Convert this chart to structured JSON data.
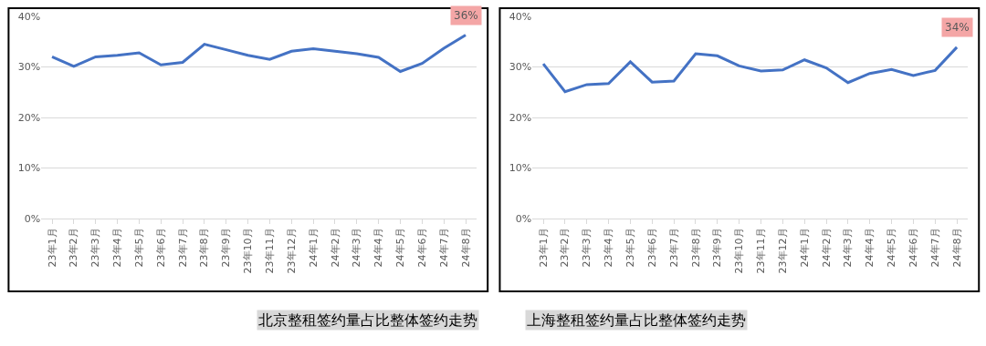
{
  "chart_data": [
    {
      "type": "line",
      "title": "北京整租签约量占比整体签约走势",
      "categories": [
        "23年1月",
        "23年2月",
        "23年3月",
        "23年4月",
        "23年5月",
        "23年6月",
        "23年7月",
        "23年8月",
        "23年9月",
        "23年10月",
        "23年11月",
        "23年12月",
        "24年1月",
        "24年2月",
        "24年3月",
        "24年4月",
        "24年5月",
        "24年6月",
        "24年7月",
        "24年8月"
      ],
      "series": [
        {
          "color": "#4472c4",
          "values": [
            32.0,
            30.1,
            32.0,
            32.3,
            32.8,
            30.4,
            30.9,
            34.5,
            33.4,
            32.3,
            31.5,
            33.1,
            33.6,
            33.1,
            32.6,
            31.9,
            29.1,
            30.7,
            33.7,
            36.3
          ],
          "value_labels": [
            null,
            null,
            null,
            null,
            null,
            null,
            null,
            null,
            null,
            null,
            null,
            null,
            null,
            null,
            null,
            null,
            null,
            null,
            null,
            "36%"
          ]
        }
      ],
      "ylim": [
        0,
        40
      ],
      "yticks": [
        {
          "value": 0,
          "label": "0%"
        },
        {
          "value": 10,
          "label": "10%"
        },
        {
          "value": 20,
          "label": "20%"
        },
        {
          "value": 30,
          "label": "30%"
        },
        {
          "value": 40,
          "label": "40%"
        }
      ],
      "grid": "y",
      "marker": "none",
      "line_style": "solid"
    },
    {
      "type": "line",
      "title": "上海整租签约量占比整体签约走势",
      "categories": [
        "23年1月",
        "23年2月",
        "23年3月",
        "23年4月",
        "23年5月",
        "23年6月",
        "23年7月",
        "23年8月",
        "23年9月",
        "23年10月",
        "23年11月",
        "23年12月",
        "24年1月",
        "24年2月",
        "24年3月",
        "24年4月",
        "24年5月",
        "24年6月",
        "24年7月",
        "24年8月"
      ],
      "series": [
        {
          "color": "#4472c4",
          "values": [
            30.6,
            25.1,
            26.5,
            26.7,
            31.0,
            27.0,
            27.2,
            32.6,
            32.2,
            30.2,
            29.2,
            29.4,
            31.4,
            29.8,
            26.9,
            28.7,
            29.5,
            28.3,
            29.3,
            33.9
          ],
          "value_labels": [
            null,
            null,
            null,
            null,
            null,
            null,
            null,
            null,
            null,
            null,
            null,
            null,
            null,
            null,
            null,
            null,
            null,
            null,
            null,
            "34%"
          ]
        }
      ],
      "ylim": [
        0,
        40
      ],
      "yticks": [
        {
          "value": 0,
          "label": "0%"
        },
        {
          "value": 10,
          "label": "10%"
        },
        {
          "value": 20,
          "label": "20%"
        },
        {
          "value": 30,
          "label": "30%"
        },
        {
          "value": 40,
          "label": "40%"
        }
      ],
      "grid": "y",
      "marker": "none",
      "line_style": "solid"
    }
  ]
}
